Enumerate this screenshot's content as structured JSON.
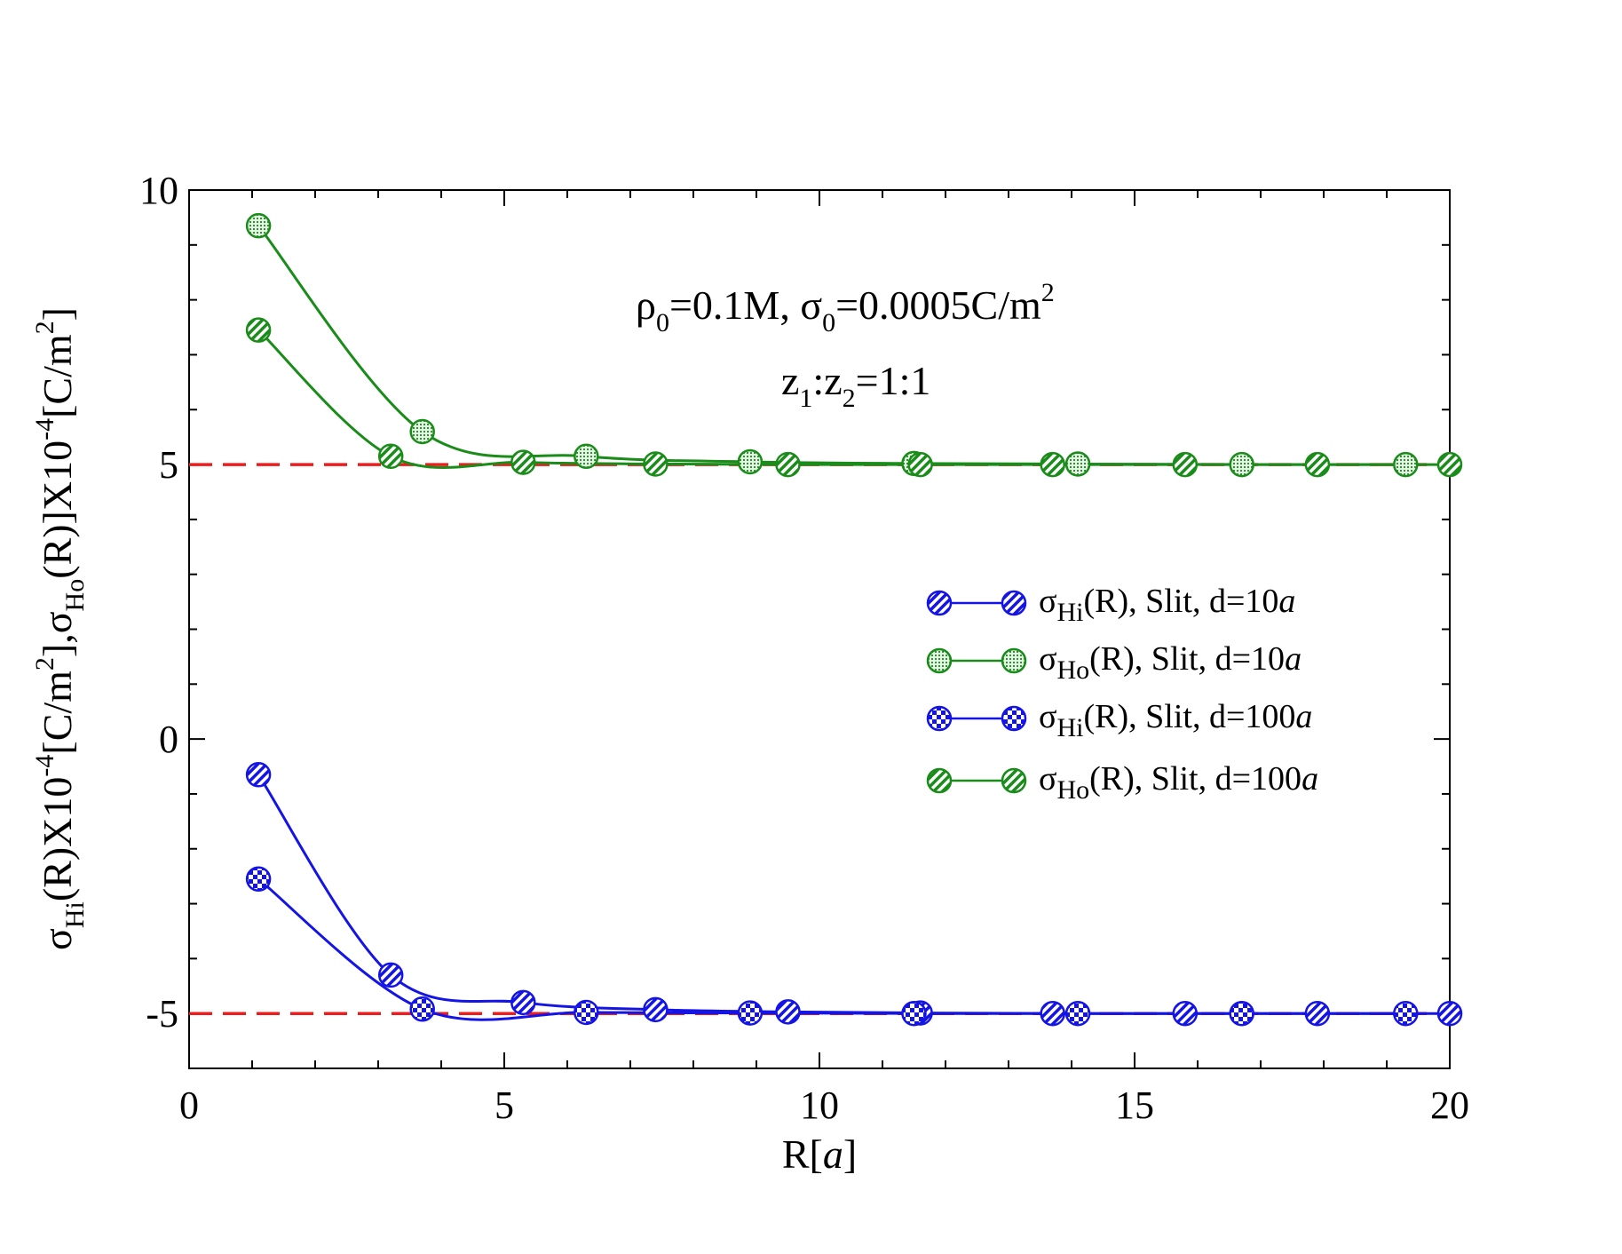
{
  "chart_data": {
    "type": "line",
    "title": "",
    "xlabel": "R[a]",
    "ylabel": "σHi(R)X10^-4[C/m^2],σHo(R)X10^-4[C/m^2]",
    "xlim": [
      0,
      20
    ],
    "ylim": [
      -6,
      10
    ],
    "x_ticks": [
      0,
      5,
      10,
      15,
      20
    ],
    "y_ticks": [
      -5,
      0,
      5,
      10
    ],
    "x_tick_labels": [
      "0",
      "5",
      "10",
      "15",
      "20"
    ],
    "y_tick_labels": [
      "-5",
      "0",
      "5",
      "10"
    ],
    "annotations": [
      "ρ0=0.1M, σ0=0.0005C/m2",
      "z1:z2=1:1"
    ],
    "reference_lines": [
      {
        "y": 5,
        "style": "dashed",
        "color": "#ee1c1c"
      },
      {
        "y": -5,
        "style": "dashed",
        "color": "#ee1c1c"
      }
    ],
    "legend_position": "center-right",
    "series": [
      {
        "name": "σHi(R), Slit, d=10a",
        "color": "#1414e6",
        "marker_pattern": "diagonal",
        "x": [
          1.1,
          3.2,
          5.3,
          7.4,
          9.5,
          11.6,
          13.7,
          15.8,
          17.9,
          20.0
        ],
        "values": [
          -0.65,
          -4.3,
          -4.8,
          -4.93,
          -4.97,
          -4.99,
          -5.0,
          -5.0,
          -5.0,
          -5.0
        ]
      },
      {
        "name": "σHo(R), Slit, d=10a",
        "color": "#1a8c1a",
        "marker_pattern": "dotted",
        "x": [
          1.1,
          3.7,
          6.3,
          8.9,
          11.5,
          14.1,
          16.7,
          19.3
        ],
        "values": [
          9.35,
          5.6,
          5.15,
          5.05,
          5.02,
          5.01,
          5.0,
          5.0
        ]
      },
      {
        "name": "σHi(R), Slit, d=100a",
        "color": "#1414e6",
        "marker_pattern": "checker",
        "x": [
          1.1,
          3.7,
          6.3,
          8.9,
          11.5,
          14.1,
          16.7,
          19.3
        ],
        "values": [
          -2.55,
          -4.92,
          -4.98,
          -4.99,
          -5.0,
          -5.0,
          -5.0,
          -5.0
        ]
      },
      {
        "name": "σHo(R), Slit, d=100a",
        "color": "#1a8c1a",
        "marker_pattern": "diagonal",
        "x": [
          1.1,
          3.2,
          5.3,
          7.4,
          9.5,
          11.6,
          13.7,
          15.8,
          17.9,
          20.0
        ],
        "values": [
          7.45,
          5.15,
          5.04,
          5.01,
          5.0,
          5.0,
          5.0,
          5.0,
          5.0,
          5.0
        ]
      }
    ]
  },
  "text": {
    "xlabel_main": "R[",
    "xlabel_italic": "a",
    "xlabel_close": "]",
    "anno1_rho": "ρ",
    "anno1_sub0": "0",
    "anno1_mid": "=0.1M, σ",
    "anno1_sub1": "0",
    "anno1_end": "=0.0005C/m",
    "anno1_sup": "2",
    "anno2_z": "z",
    "anno2_sub1": "1",
    "anno2_mid": ":z",
    "anno2_sub2": "2",
    "anno2_end": "=1:1",
    "ylabel_sigma1": "σ",
    "ylabel_sub1": "Hi",
    "ylabel_part1": "(R)X10",
    "ylabel_sup1": "-4",
    "ylabel_part2": "[C/m",
    "ylabel_sup2": "2",
    "ylabel_part3": "],σ",
    "ylabel_sub2": "Ho",
    "ylabel_part4": "(R)]X10",
    "ylabel_sup3": "-4",
    "ylabel_part5": "[C/m",
    "ylabel_sup4": "2",
    "ylabel_part6": "]",
    "legend_sigma": "σ",
    "legend_sub_hi": "Hi",
    "legend_sub_ho": "Ho",
    "legend_rest_10": "(R), Slit, d=10",
    "legend_rest_100": "(R), Slit, d=100",
    "legend_italic": "a"
  }
}
